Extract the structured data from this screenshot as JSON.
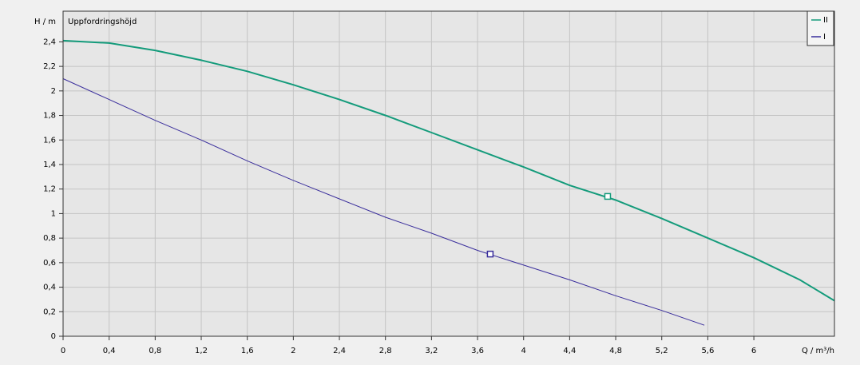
{
  "chart_data": {
    "type": "line",
    "title": "Uppfordringshöjd",
    "y_label": "H / m",
    "x_label": "Q / m³/h",
    "xlim": [
      0,
      6.7
    ],
    "ylim": [
      0,
      2.65
    ],
    "grid": true,
    "legend": "top-right",
    "xticks": [
      0,
      {
        "value": 0.4,
        "label": "0,4"
      },
      {
        "value": 0.8,
        "label": "0,8"
      },
      {
        "value": 1.2,
        "label": "1,2"
      },
      {
        "value": 1.6,
        "label": "1,6"
      },
      2,
      {
        "value": 2.4,
        "label": "2,4"
      },
      {
        "value": 2.8,
        "label": "2,8"
      },
      {
        "value": 3.2,
        "label": "3,2"
      },
      {
        "value": 3.6,
        "label": "3,6"
      },
      4,
      {
        "value": 4.4,
        "label": "4,4"
      },
      {
        "value": 4.8,
        "label": "4,8"
      },
      {
        "value": 5.2,
        "label": "5,2"
      },
      {
        "value": 5.6,
        "label": "5,6"
      },
      6
    ],
    "yticks": [
      0,
      {
        "value": 0.2,
        "label": "0,2"
      },
      {
        "value": 0.4,
        "label": "0,4"
      },
      {
        "value": 0.6,
        "label": "0,6"
      },
      {
        "value": 0.8,
        "label": "0,8"
      },
      1,
      {
        "value": 1.2,
        "label": "1,2"
      },
      {
        "value": 1.4,
        "label": "1,4"
      },
      {
        "value": 1.6,
        "label": "1,6"
      },
      {
        "value": 1.8,
        "label": "1,8"
      },
      2,
      {
        "value": 2.2,
        "label": "2,2"
      },
      {
        "value": 2.4,
        "label": "2,4"
      }
    ],
    "series": [
      {
        "name": "II",
        "color": "#149b7b",
        "width": 2,
        "x": [
          0,
          0.4,
          0.8,
          1.2,
          1.6,
          2.0,
          2.4,
          2.8,
          3.2,
          3.6,
          4.0,
          4.4,
          4.8,
          5.2,
          5.6,
          6.0,
          6.4,
          6.7
        ],
        "values": [
          2.41,
          2.39,
          2.33,
          2.25,
          2.16,
          2.05,
          1.93,
          1.8,
          1.66,
          1.52,
          1.38,
          1.23,
          1.11,
          0.96,
          0.8,
          0.64,
          0.46,
          0.29
        ],
        "point": [
          4.73,
          1.14
        ]
      },
      {
        "name": "I",
        "color": "#3a2e9c",
        "width": 1,
        "x": [
          0,
          0.4,
          0.8,
          1.2,
          1.6,
          2.0,
          2.4,
          2.8,
          3.2,
          3.6,
          4.0,
          4.4,
          4.8,
          5.2,
          5.57
        ],
        "values": [
          2.1,
          1.93,
          1.76,
          1.6,
          1.43,
          1.27,
          1.12,
          0.97,
          0.84,
          0.7,
          0.58,
          0.46,
          0.33,
          0.21,
          0.09
        ],
        "point": [
          3.71,
          0.67
        ]
      }
    ]
  }
}
